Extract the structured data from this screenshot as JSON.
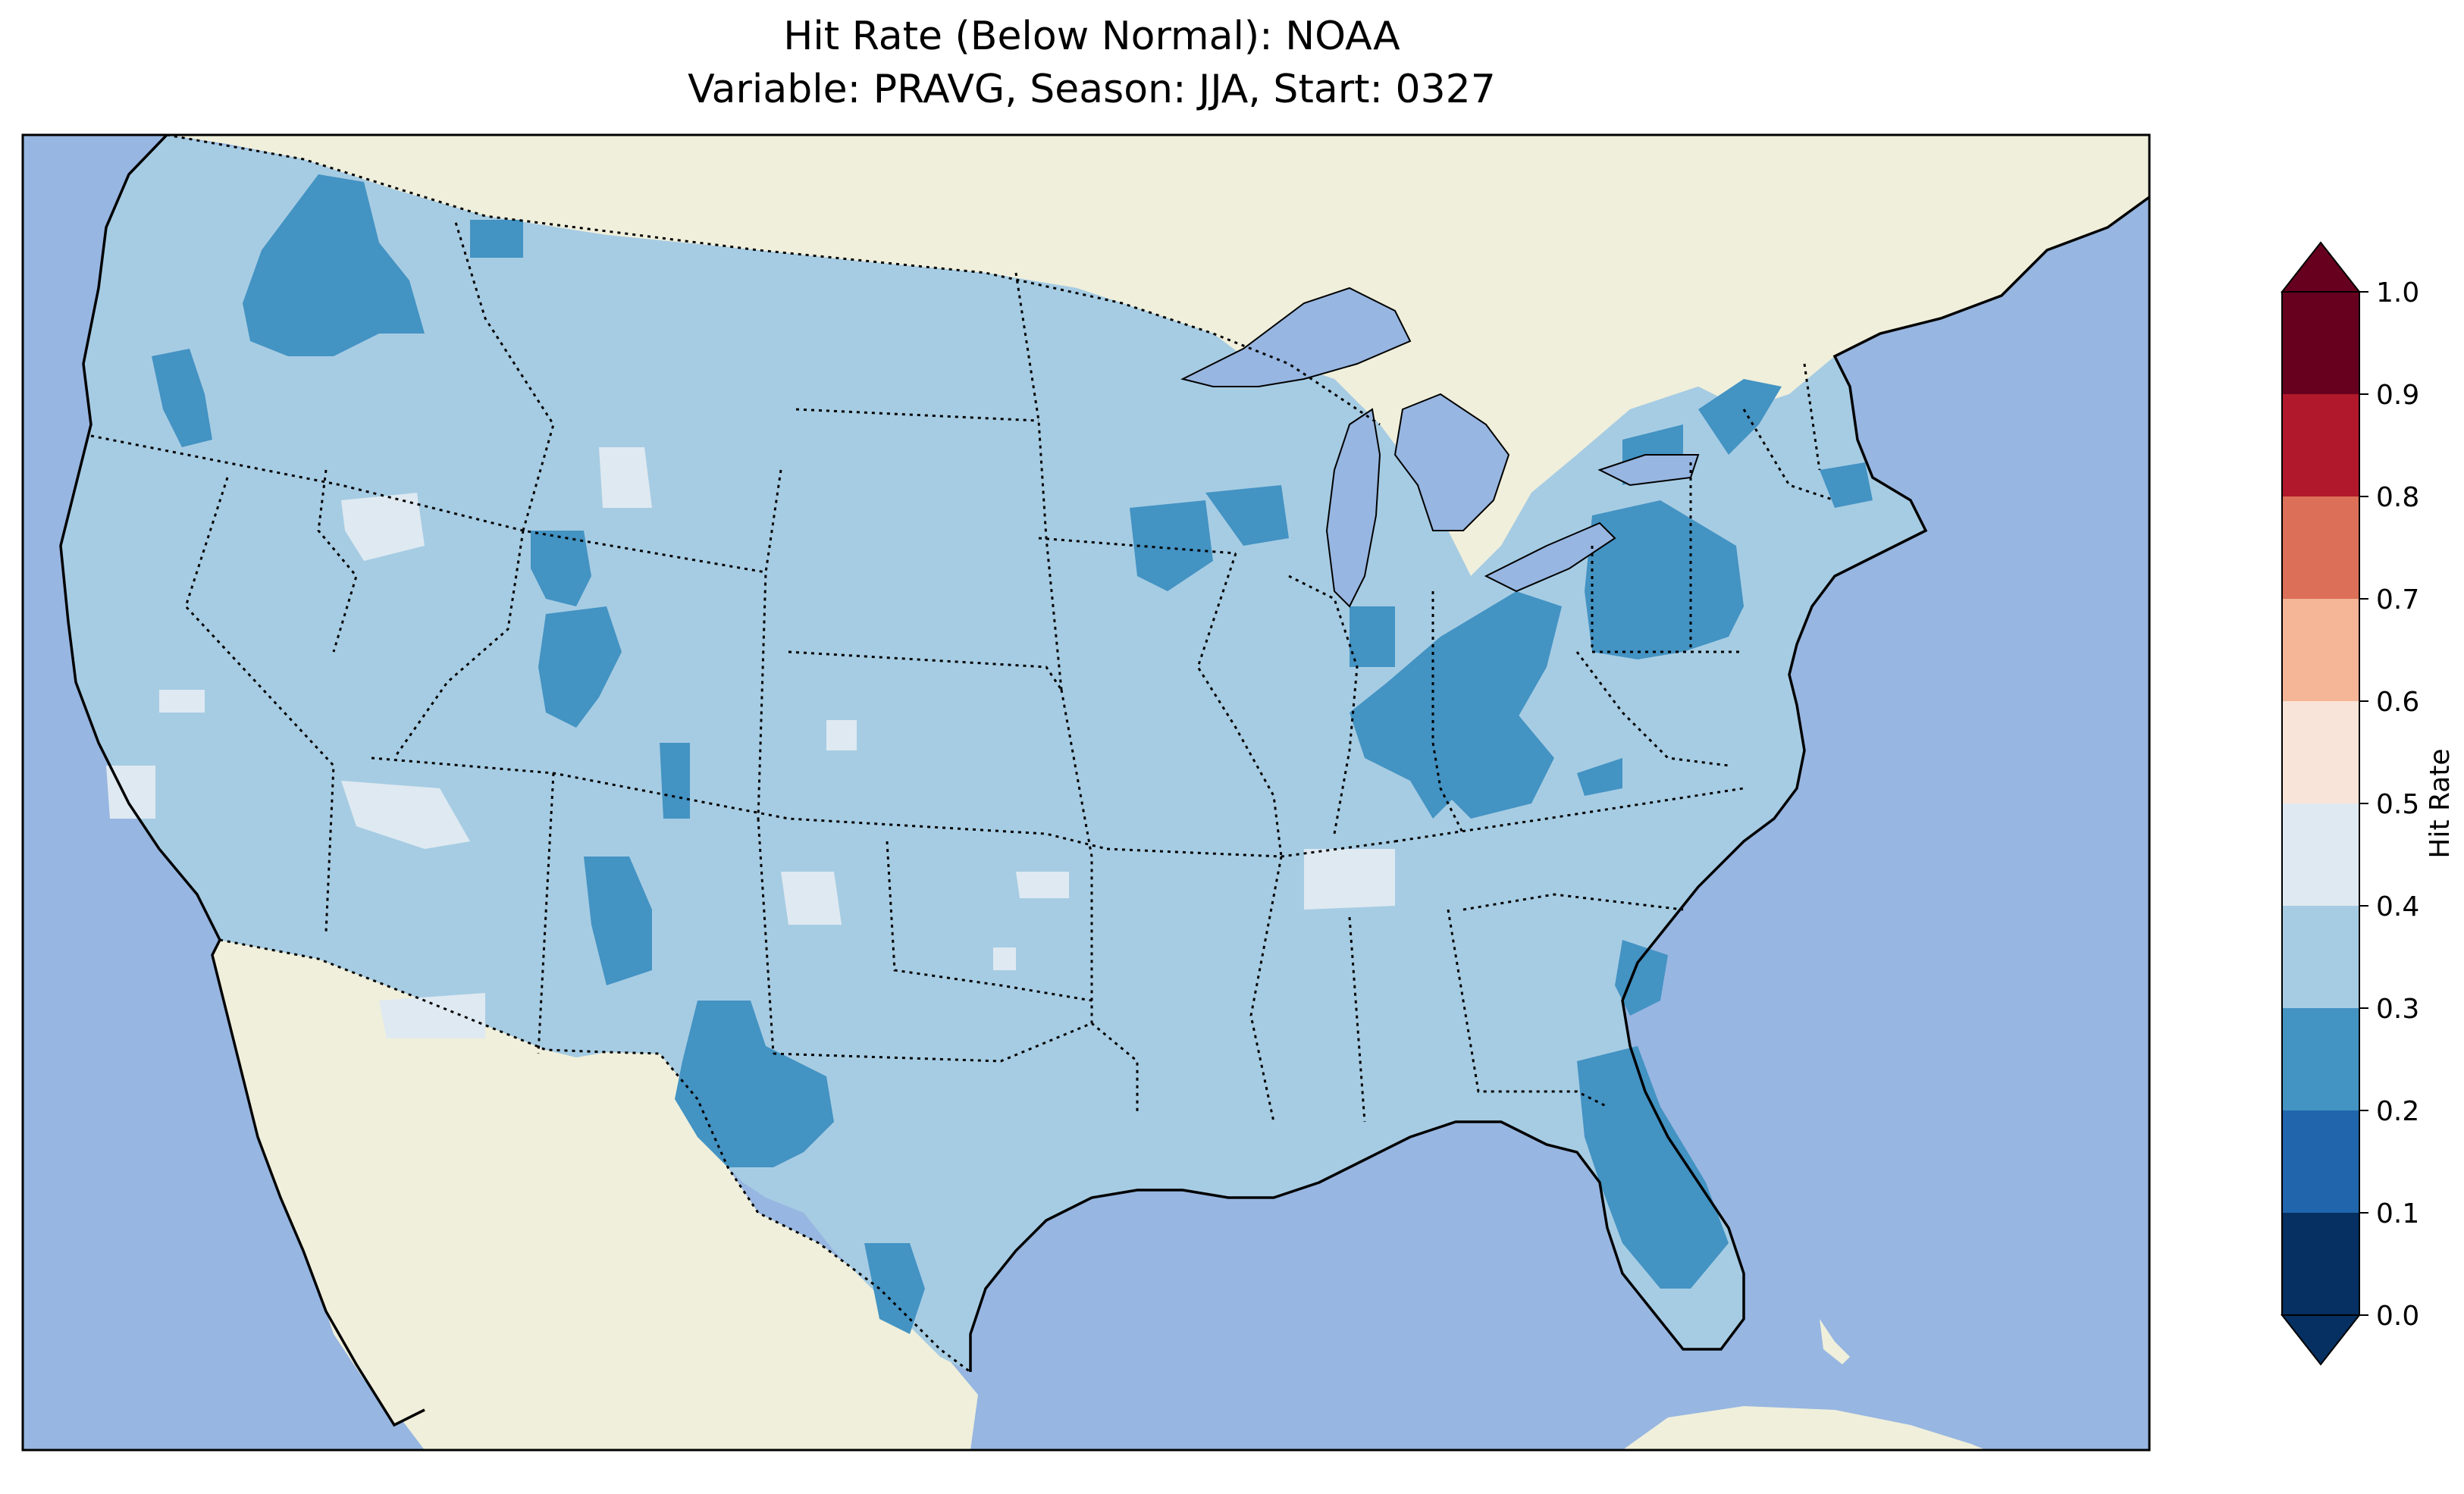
{
  "title": {
    "line1": "Hit Rate (Below Normal): NOAA",
    "line2": "Variable: PRAVG, Season: JJA, Start: 0327"
  },
  "colors": {
    "ocean": "#97b6e1",
    "land": "#efefdb",
    "lake": "#97b6e1",
    "bin_0_1": "#053061",
    "bin_1_2": "#2166ac",
    "bin_2_3": "#4393c3",
    "bin_3_4": "#a6cce3",
    "bin_4_5": "#dfe9f1",
    "bin_5_6": "#f9e4d9",
    "bin_6_7": "#f5b597",
    "bin_7_8": "#dc6f58",
    "bin_8_9": "#b2182b",
    "bin_9_10": "#67001f"
  },
  "colorbar": {
    "label": "Hit Rate",
    "ticks": [
      "0.0",
      "0.1",
      "0.2",
      "0.3",
      "0.4",
      "0.5",
      "0.6",
      "0.7",
      "0.8",
      "0.9",
      "1.0"
    ],
    "extend": "both"
  },
  "map": {
    "projection": "Plate Carree / CONUS",
    "dominant_bin": "0.3-0.4",
    "features": [
      "coastlines",
      "state borders",
      "country borders",
      "lakes",
      "ocean",
      "land"
    ]
  }
}
